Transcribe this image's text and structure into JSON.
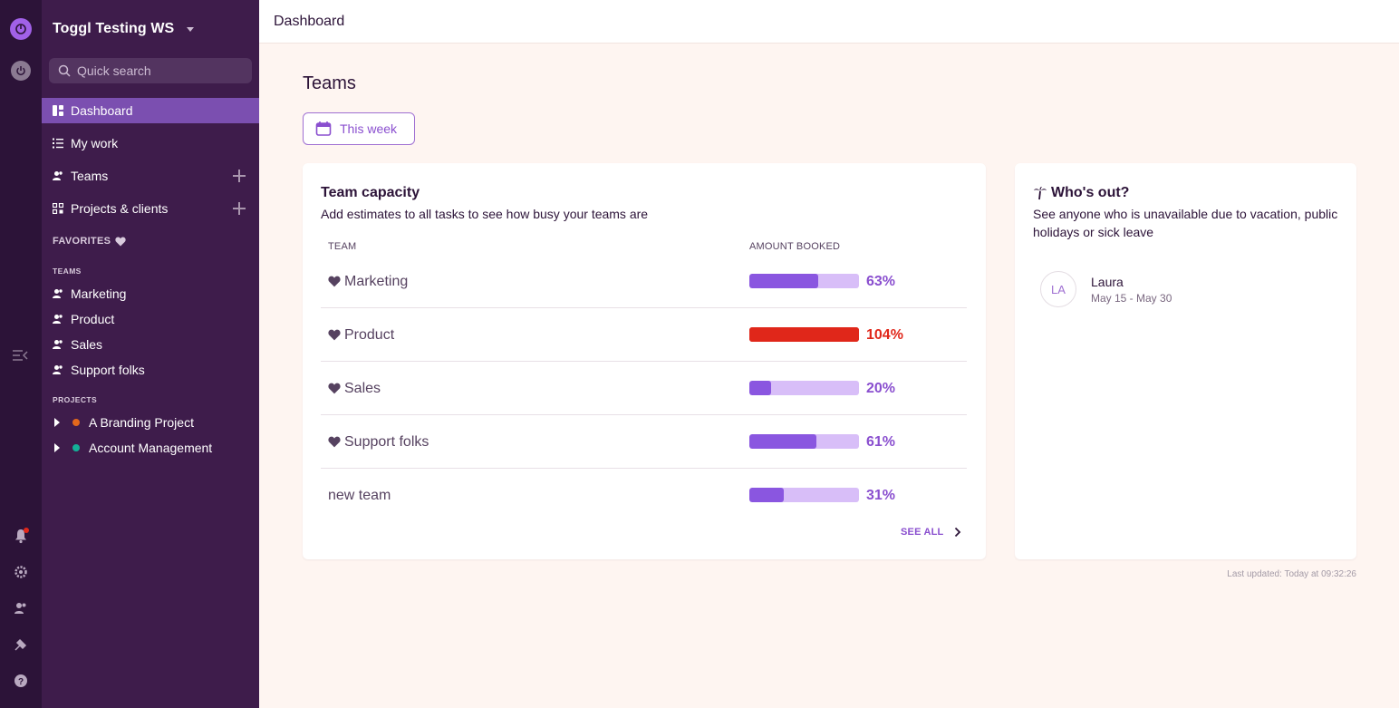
{
  "workspace": {
    "name": "Toggl Testing WS"
  },
  "search": {
    "placeholder": "Quick search"
  },
  "nav": {
    "dashboard": "Dashboard",
    "my_work": "My work",
    "teams": "Teams",
    "projects": "Projects & clients"
  },
  "sidebar": {
    "favorites_label": "FAVORITES",
    "teams_section": "TEAMS",
    "teams": [
      "Marketing",
      "Product",
      "Sales",
      "Support folks"
    ],
    "projects_section": "PROJECTS",
    "projects": [
      {
        "name": "A Branding Project",
        "color": "#e2681c"
      },
      {
        "name": "Account Management",
        "color": "#14b097"
      }
    ]
  },
  "topbar": {
    "title": "Dashboard"
  },
  "main": {
    "title": "Teams",
    "period_button": "This week",
    "last_updated": "Last updated: Today at 09:32:26"
  },
  "capacity": {
    "title": "Team capacity",
    "subtitle": "Add estimates to all tasks to see how busy your teams are",
    "col_team": "TEAM",
    "col_amount": "AMOUNT BOOKED",
    "rows": [
      {
        "name": "Marketing",
        "favorite": true,
        "percent_label": "63%",
        "fill": 0.63,
        "over": false
      },
      {
        "name": "Product",
        "favorite": true,
        "percent_label": "104%",
        "fill": 1.0,
        "over": true
      },
      {
        "name": "Sales",
        "favorite": true,
        "percent_label": "20%",
        "fill": 0.2,
        "over": false
      },
      {
        "name": "Support folks",
        "favorite": true,
        "percent_label": "61%",
        "fill": 0.61,
        "over": false
      },
      {
        "name": "new team",
        "favorite": false,
        "percent_label": "31%",
        "fill": 0.31,
        "over": false
      }
    ],
    "see_all": "SEE ALL"
  },
  "whos_out": {
    "title": "Who's out?",
    "subtitle": "See anyone who is unavailable due to vacation, public holidays or sick leave",
    "people": [
      {
        "initials": "LA",
        "name": "Laura",
        "dates": "May 15 - May 30"
      }
    ]
  },
  "colors": {
    "sidebar_bg": "#3e1c4b",
    "rail_bg": "#2c1338",
    "accent": "#8a4fcf",
    "over_capacity": "#e0271a",
    "page_bg": "#fef5f1"
  }
}
